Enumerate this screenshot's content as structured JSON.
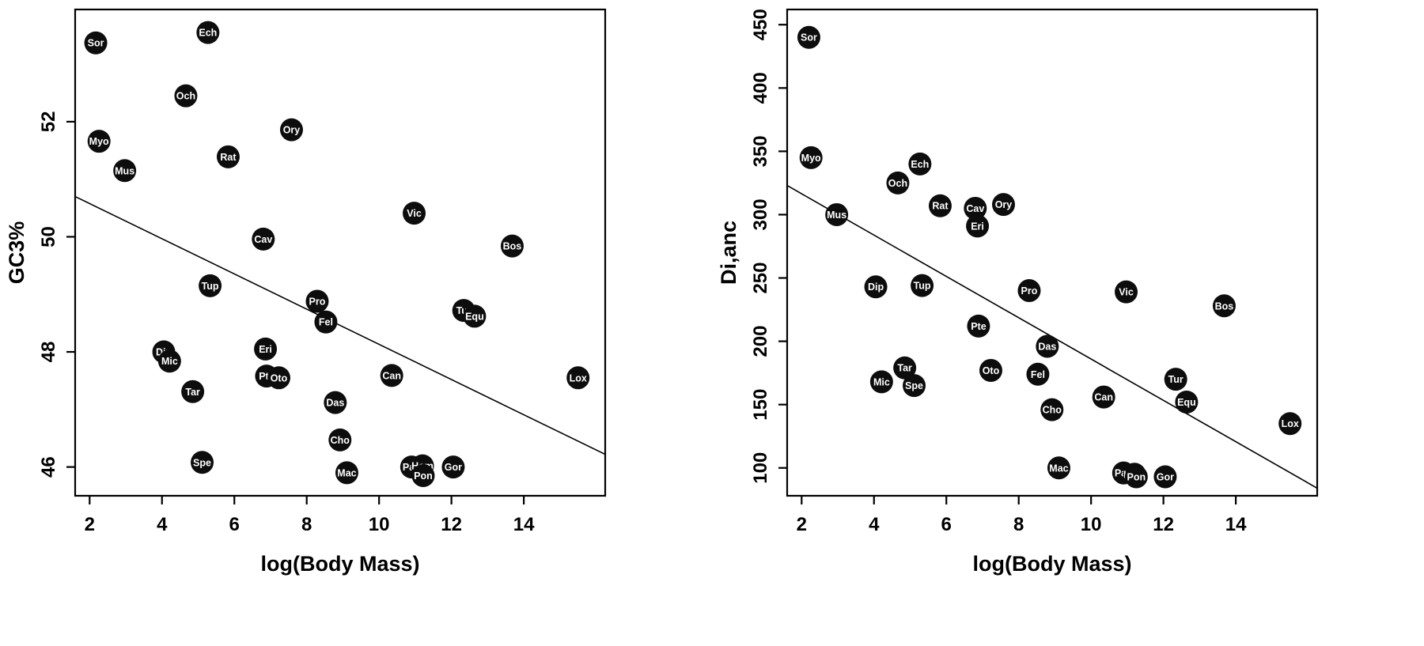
{
  "figure": {
    "description": "Two labeled scatter plots with regression lines",
    "point_color": "#0d0d0d",
    "point_label_color": "#ffffff",
    "line_color": "#000000"
  },
  "chart_data": [
    {
      "type": "scatter",
      "title": "",
      "xlabel": "log(Body Mass)",
      "ylabel": "GC3%",
      "xlim": [
        1.6,
        16.25
      ],
      "ylim": [
        45.5,
        53.95
      ],
      "xticks": [
        2,
        4,
        6,
        8,
        10,
        12,
        14
      ],
      "yticks": [
        46,
        48,
        50,
        52
      ],
      "grid": false,
      "regression_line": {
        "x1": 1.6,
        "y1": 50.7,
        "x2": 16.25,
        "y2": 46.22
      },
      "points": [
        {
          "label": "Sor",
          "x": 2.17,
          "y": 53.37
        },
        {
          "label": "Ech",
          "x": 5.27,
          "y": 53.55
        },
        {
          "label": "Och",
          "x": 4.66,
          "y": 52.45
        },
        {
          "label": "Ory",
          "x": 7.58,
          "y": 51.86
        },
        {
          "label": "Myo",
          "x": 2.26,
          "y": 51.66
        },
        {
          "label": "Rat",
          "x": 5.83,
          "y": 51.39
        },
        {
          "label": "Mus",
          "x": 2.97,
          "y": 51.15
        },
        {
          "label": "Vic",
          "x": 10.97,
          "y": 50.41
        },
        {
          "label": "Cav",
          "x": 6.8,
          "y": 49.96
        },
        {
          "label": "Bos",
          "x": 13.68,
          "y": 49.84
        },
        {
          "label": "Tup",
          "x": 5.33,
          "y": 49.15
        },
        {
          "label": "Pro",
          "x": 8.29,
          "y": 48.88
        },
        {
          "label": "Tur",
          "x": 12.34,
          "y": 48.72
        },
        {
          "label": "Equ",
          "x": 12.64,
          "y": 48.62
        },
        {
          "label": "Fel",
          "x": 8.53,
          "y": 48.52
        },
        {
          "label": "Eri",
          "x": 6.86,
          "y": 48.05
        },
        {
          "label": "Dip",
          "x": 4.05,
          "y": 48.0
        },
        {
          "label": "Mic",
          "x": 4.21,
          "y": 47.84
        },
        {
          "label": "Pte",
          "x": 6.89,
          "y": 47.58
        },
        {
          "label": "Oto",
          "x": 7.23,
          "y": 47.55
        },
        {
          "label": "Can",
          "x": 10.35,
          "y": 47.59
        },
        {
          "label": "Lox",
          "x": 15.5,
          "y": 47.55
        },
        {
          "label": "Tar",
          "x": 4.85,
          "y": 47.31
        },
        {
          "label": "Das",
          "x": 8.79,
          "y": 47.12
        },
        {
          "label": "Cho",
          "x": 8.92,
          "y": 46.47
        },
        {
          "label": "Spe",
          "x": 5.11,
          "y": 46.08
        },
        {
          "label": "Mac",
          "x": 9.11,
          "y": 45.9
        },
        {
          "label": "Pan",
          "x": 10.9,
          "y": 46.0
        },
        {
          "label": "Hom",
          "x": 11.2,
          "y": 46.02
        },
        {
          "label": "Pon",
          "x": 11.22,
          "y": 45.85
        },
        {
          "label": "Gor",
          "x": 12.05,
          "y": 46.0
        }
      ]
    },
    {
      "type": "scatter",
      "title": "",
      "xlabel": "log(Body Mass)",
      "ylabel": "Di,anc",
      "xlim": [
        1.6,
        16.25
      ],
      "ylim": [
        78,
        462
      ],
      "xticks": [
        2,
        4,
        6,
        8,
        10,
        12,
        14
      ],
      "yticks": [
        100,
        150,
        200,
        250,
        300,
        350,
        400,
        450
      ],
      "grid": false,
      "regression_line": {
        "x1": 1.6,
        "y1": 323,
        "x2": 16.25,
        "y2": 84
      },
      "points": [
        {
          "label": "Sor",
          "x": 2.2,
          "y": 440
        },
        {
          "label": "Myo",
          "x": 2.26,
          "y": 345
        },
        {
          "label": "Ech",
          "x": 5.27,
          "y": 340
        },
        {
          "label": "Och",
          "x": 4.66,
          "y": 325
        },
        {
          "label": "Ory",
          "x": 7.58,
          "y": 308
        },
        {
          "label": "Rat",
          "x": 5.83,
          "y": 307
        },
        {
          "label": "Cav",
          "x": 6.8,
          "y": 305
        },
        {
          "label": "Mus",
          "x": 2.97,
          "y": 300
        },
        {
          "label": "Eri",
          "x": 6.86,
          "y": 291
        },
        {
          "label": "Tup",
          "x": 5.33,
          "y": 244
        },
        {
          "label": "Dip",
          "x": 4.05,
          "y": 243
        },
        {
          "label": "Pro",
          "x": 8.29,
          "y": 240
        },
        {
          "label": "Vic",
          "x": 10.97,
          "y": 239
        },
        {
          "label": "Bos",
          "x": 13.68,
          "y": 228
        },
        {
          "label": "Pte",
          "x": 6.89,
          "y": 212
        },
        {
          "label": "Das",
          "x": 8.79,
          "y": 196
        },
        {
          "label": "Tar",
          "x": 4.85,
          "y": 179
        },
        {
          "label": "Oto",
          "x": 7.23,
          "y": 177
        },
        {
          "label": "Fel",
          "x": 8.53,
          "y": 174
        },
        {
          "label": "Tur",
          "x": 12.34,
          "y": 170
        },
        {
          "label": "Mic",
          "x": 4.21,
          "y": 168
        },
        {
          "label": "Spe",
          "x": 5.11,
          "y": 165
        },
        {
          "label": "Can",
          "x": 10.35,
          "y": 156
        },
        {
          "label": "Equ",
          "x": 12.64,
          "y": 152
        },
        {
          "label": "Cho",
          "x": 8.92,
          "y": 146
        },
        {
          "label": "Lox",
          "x": 15.5,
          "y": 135
        },
        {
          "label": "Mac",
          "x": 9.11,
          "y": 100
        },
        {
          "label": "Pan",
          "x": 10.9,
          "y": 96
        },
        {
          "label": "Hom",
          "x": 11.2,
          "y": 95
        },
        {
          "label": "Pon",
          "x": 11.25,
          "y": 93
        },
        {
          "label": "Gor",
          "x": 12.05,
          "y": 93
        }
      ]
    }
  ]
}
